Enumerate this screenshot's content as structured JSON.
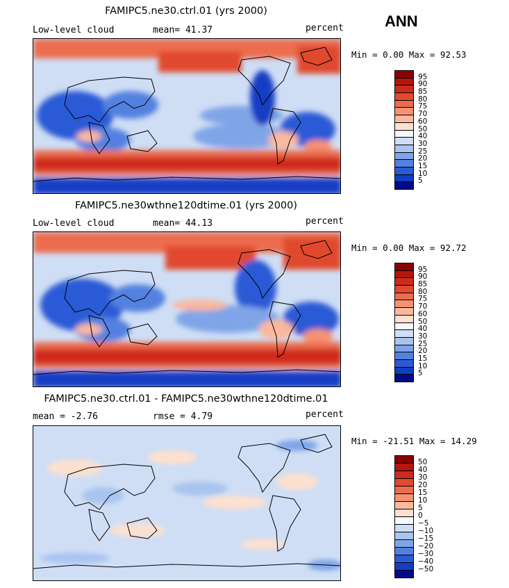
{
  "season": "ANN",
  "panels": [
    {
      "title": "FAMIPC5.ne30.ctrl.01 (yrs 2000)",
      "left": "Low-level cloud",
      "center": "mean=  41.37",
      "right": "percent",
      "minmax": "Min =    0.00 Max =   92.53",
      "palette": "seq"
    },
    {
      "title": "FAMIPC5.ne30wthne120dtime.01 (yrs 2000)",
      "left": "Low-level cloud",
      "center": "mean=  44.13",
      "right": "percent",
      "minmax": "Min =    0.00 Max =   92.72",
      "palette": "seq"
    },
    {
      "title": "FAMIPC5.ne30.ctrl.01 - FAMIPC5.ne30wthne120dtime.01",
      "left": "mean =  -2.76",
      "center": "rmse =   4.79",
      "right": "percent",
      "minmax": "Min = -21.51 Max =  14.29",
      "palette": "diff"
    }
  ],
  "colorbars": {
    "seq": {
      "labels": [
        "95",
        "90",
        "85",
        "80",
        "75",
        "70",
        "60",
        "50",
        "40",
        "30",
        "25",
        "20",
        "15",
        "10",
        "5"
      ],
      "colors": [
        "#8b0000",
        "#b3160d",
        "#cf2b1a",
        "#e04a2d",
        "#ec6d4e",
        "#f59273",
        "#fab89c",
        "#fde0d0",
        "#f5f8fc",
        "#cfdef5",
        "#a9c4ef",
        "#7fa5e8",
        "#5281e0",
        "#2c5ad6",
        "#123ec4",
        "#000b8c"
      ]
    },
    "diff": {
      "labels": [
        "50",
        "40",
        "30",
        "20",
        "15",
        "10",
        "5",
        "0",
        "−5",
        "−10",
        "−15",
        "−20",
        "−30",
        "−40",
        "−50"
      ],
      "colors": [
        "#8b0000",
        "#b3160d",
        "#cf2b1a",
        "#e04a2d",
        "#ec6d4e",
        "#f59273",
        "#fab89c",
        "#fde0d0",
        "#f5f8fc",
        "#cfdef5",
        "#a9c4ef",
        "#7fa5e8",
        "#5281e0",
        "#2c5ad6",
        "#123ec4",
        "#000b8c"
      ]
    }
  }
}
